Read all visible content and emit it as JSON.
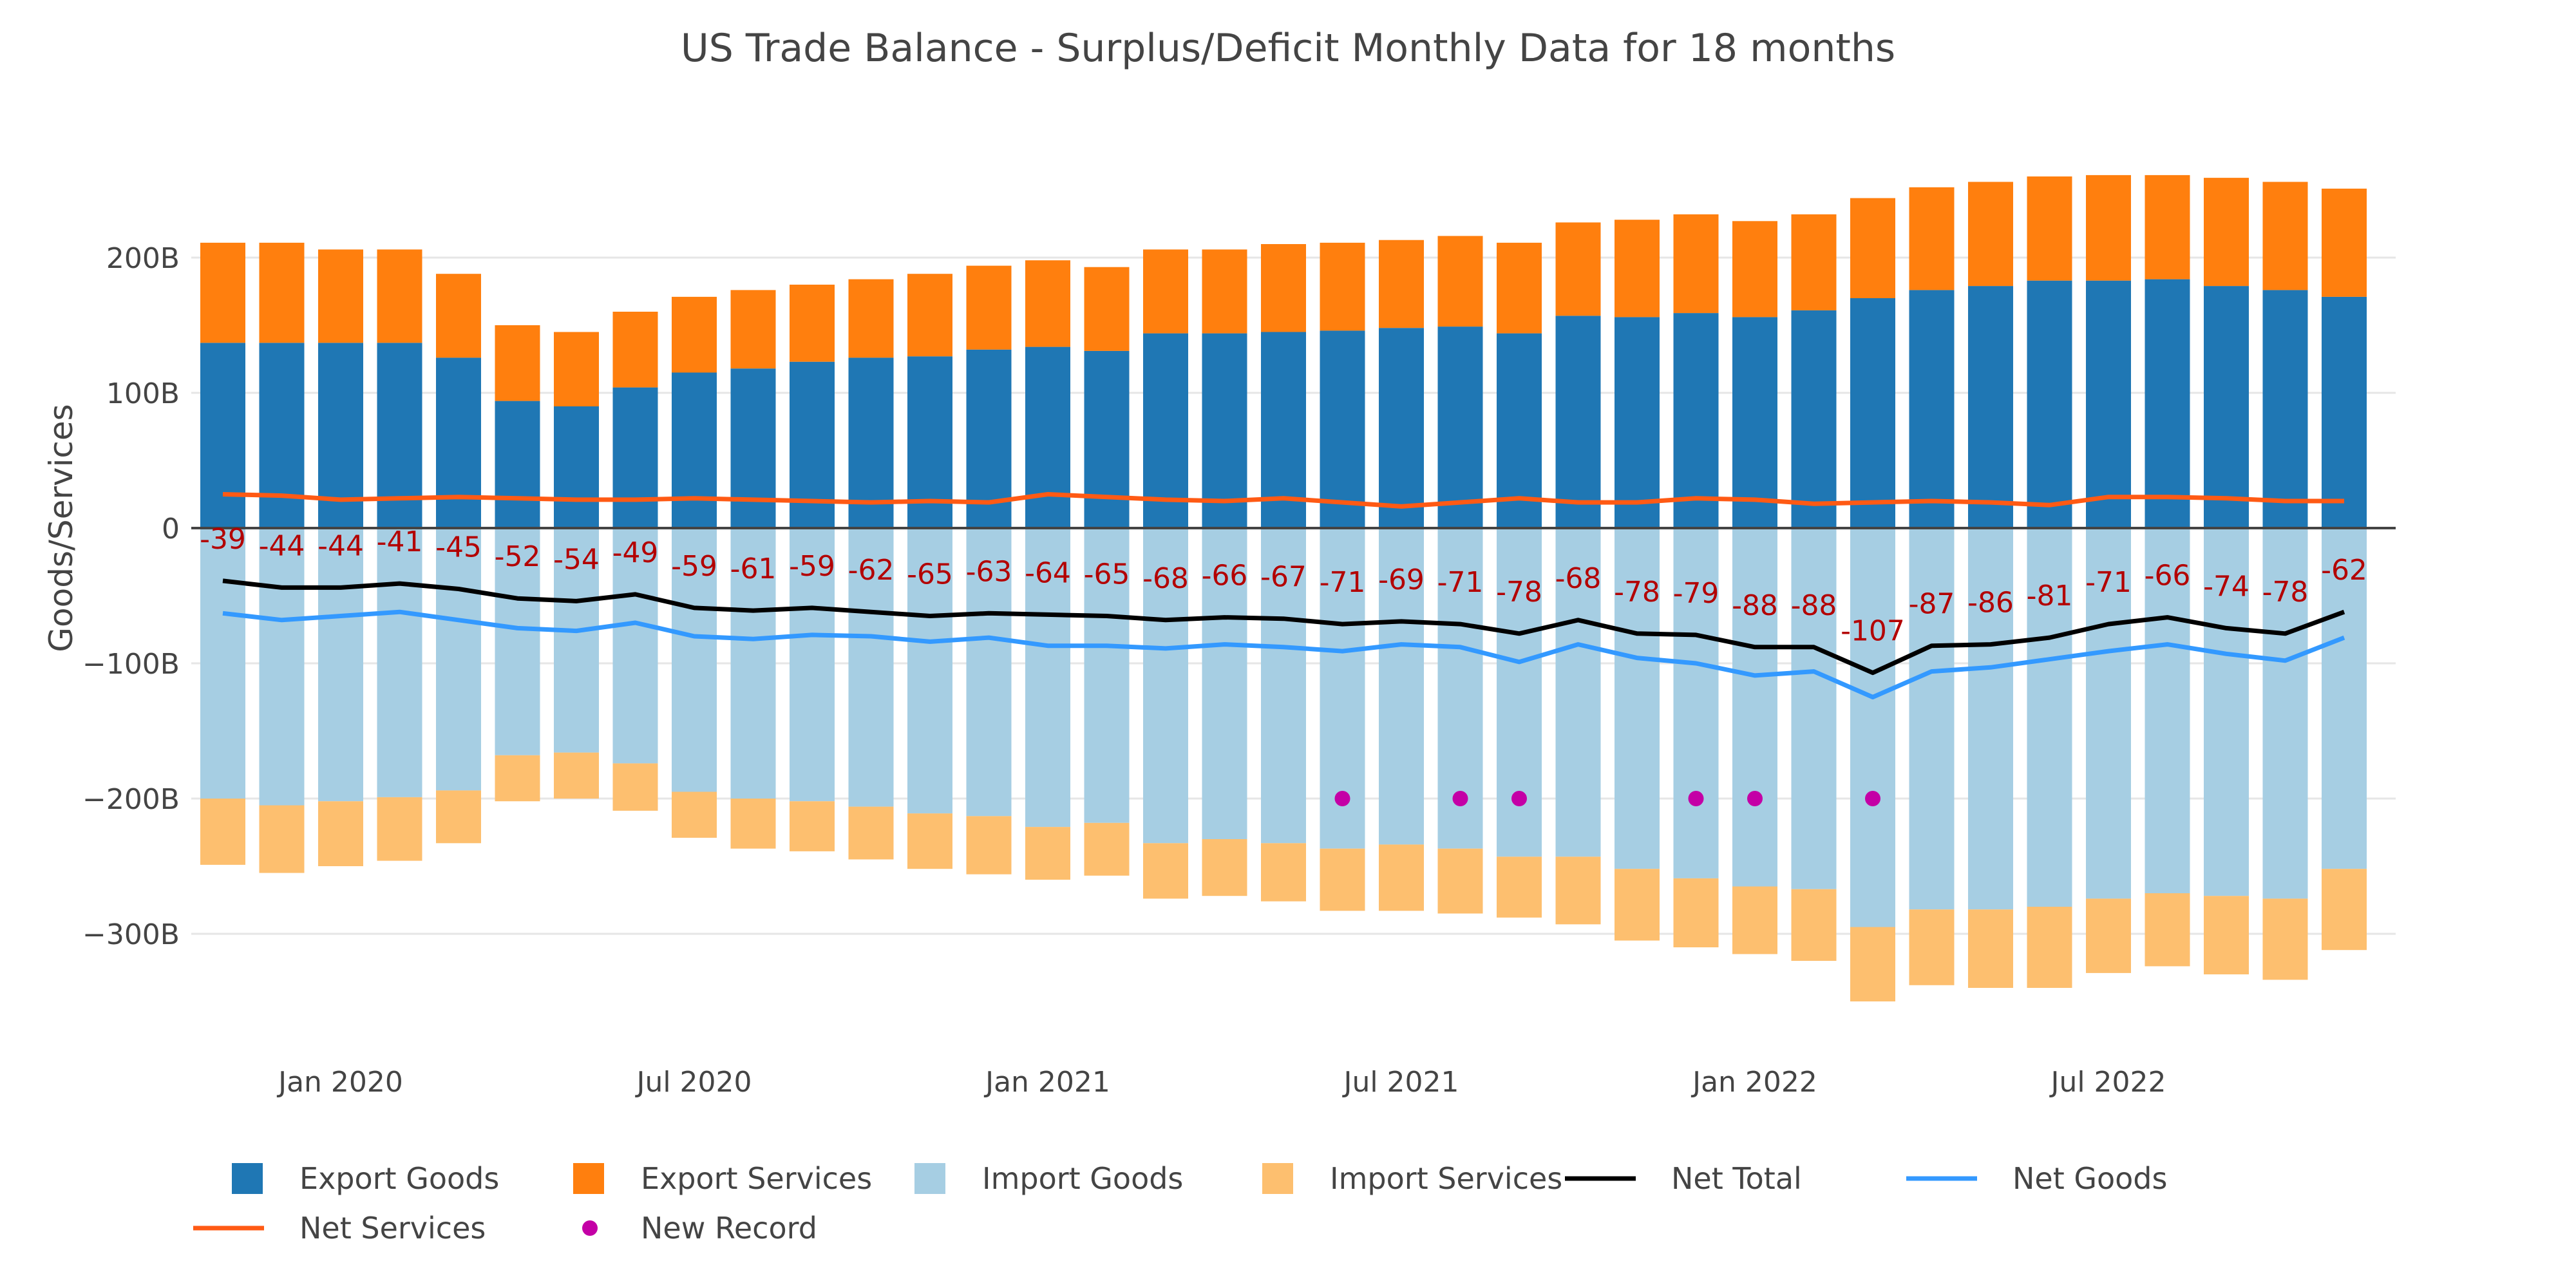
{
  "chart_data": {
    "type": "bar",
    "title": "US Trade Balance - Surplus/Deficit Monthly Data for 18 months",
    "xlabel": "",
    "ylabel": "Goods/Services",
    "ylim": [
      -390,
      300
    ],
    "yticks": [
      -300,
      -200,
      -100,
      0,
      100,
      200
    ],
    "ytick_labels": [
      "−300B",
      "−200B",
      "−100B",
      "0",
      "100B",
      "200B"
    ],
    "x": [
      "2019-11",
      "2019-12",
      "2020-01",
      "2020-02",
      "2020-03",
      "2020-04",
      "2020-05",
      "2020-06",
      "2020-07",
      "2020-08",
      "2020-09",
      "2020-10",
      "2020-11",
      "2020-12",
      "2021-01",
      "2021-02",
      "2021-03",
      "2021-04",
      "2021-05",
      "2021-06",
      "2021-07",
      "2021-08",
      "2021-09",
      "2021-10",
      "2021-11",
      "2021-12",
      "2022-01",
      "2022-02",
      "2022-03",
      "2022-04",
      "2022-05",
      "2022-06",
      "2022-07",
      "2022-08",
      "2022-09",
      "2022-10",
      "2022-11"
    ],
    "xticks": [
      {
        "index": 2,
        "label": "Jan 2020"
      },
      {
        "index": 8,
        "label": "Jul 2020"
      },
      {
        "index": 14,
        "label": "Jan 2021"
      },
      {
        "index": 20,
        "label": "Jul 2021"
      },
      {
        "index": 26,
        "label": "Jan 2022"
      },
      {
        "index": 32,
        "label": "Jul 2022"
      }
    ],
    "grid": true,
    "barmode": "relative",
    "legend_position": "bottom",
    "series": [
      {
        "name": "Export Goods",
        "kind": "bar",
        "color": "#1f77b4",
        "values": [
          137,
          137,
          137,
          137,
          126,
          94,
          90,
          104,
          115,
          118,
          123,
          126,
          127,
          132,
          134,
          131,
          144,
          144,
          145,
          146,
          148,
          149,
          144,
          157,
          156,
          159,
          156,
          161,
          170,
          176,
          179,
          183,
          183,
          184,
          179,
          176,
          171
        ]
      },
      {
        "name": "Export Services",
        "kind": "bar",
        "color": "#ff7f0e",
        "values": [
          74,
          74,
          69,
          69,
          62,
          56,
          55,
          56,
          56,
          58,
          57,
          58,
          61,
          62,
          64,
          62,
          62,
          62,
          65,
          65,
          65,
          67,
          67,
          69,
          72,
          73,
          71,
          71,
          74,
          76,
          77,
          77,
          78,
          77,
          80,
          80,
          80
        ]
      },
      {
        "name": "Import Goods",
        "kind": "bar",
        "color": "#a6cee3",
        "values": [
          -200,
          -205,
          -202,
          -199,
          -194,
          -168,
          -166,
          -174,
          -195,
          -200,
          -202,
          -206,
          -211,
          -213,
          -221,
          -218,
          -233,
          -230,
          -233,
          -237,
          -234,
          -237,
          -243,
          -243,
          -252,
          -259,
          -265,
          -267,
          -295,
          -282,
          -282,
          -280,
          -274,
          -270,
          -272,
          -274,
          -252
        ]
      },
      {
        "name": "Import Services",
        "kind": "bar",
        "color": "#fdbf6f",
        "values": [
          -49,
          -50,
          -48,
          -47,
          -39,
          -34,
          -34,
          -35,
          -34,
          -37,
          -37,
          -39,
          -41,
          -43,
          -39,
          -39,
          -41,
          -42,
          -43,
          -46,
          -49,
          -48,
          -45,
          -50,
          -53,
          -51,
          -50,
          -53,
          -55,
          -56,
          -58,
          -60,
          -55,
          -54,
          -58,
          -60,
          -60
        ]
      },
      {
        "name": "Net Total",
        "kind": "line",
        "color": "#000000",
        "values": [
          -39,
          -44,
          -44,
          -41,
          -45,
          -52,
          -54,
          -49,
          -59,
          -61,
          -59,
          -62,
          -65,
          -63,
          -64,
          -65,
          -68,
          -66,
          -67,
          -71,
          -69,
          -71,
          -78,
          -68,
          -78,
          -79,
          -88,
          -88,
          -107,
          -87,
          -86,
          -81,
          -71,
          -66,
          -74,
          -78,
          -62
        ]
      },
      {
        "name": "Net Goods",
        "kind": "line",
        "color": "#3399ff",
        "values": [
          -63,
          -68,
          -65,
          -62,
          -68,
          -74,
          -76,
          -70,
          -80,
          -82,
          -79,
          -80,
          -84,
          -81,
          -87,
          -87,
          -89,
          -86,
          -88,
          -91,
          -86,
          -88,
          -99,
          -86,
          -96,
          -100,
          -109,
          -106,
          -125,
          -106,
          -103,
          -97,
          -91,
          -86,
          -93,
          -98,
          -81
        ]
      },
      {
        "name": "Net Services",
        "kind": "line",
        "color": "#ff5a14",
        "values": [
          25,
          24,
          21,
          22,
          23,
          22,
          21,
          21,
          22,
          21,
          20,
          19,
          20,
          19,
          25,
          23,
          21,
          20,
          22,
          19,
          16,
          19,
          22,
          19,
          19,
          22,
          21,
          18,
          19,
          20,
          19,
          17,
          23,
          23,
          22,
          20,
          20
        ]
      },
      {
        "name": "New Record",
        "kind": "marker",
        "color": "#c400a6",
        "points": [
          {
            "index": 19,
            "y": -200
          },
          {
            "index": 21,
            "y": -200
          },
          {
            "index": 22,
            "y": -200
          },
          {
            "index": 25,
            "y": -200
          },
          {
            "index": 26,
            "y": -200
          },
          {
            "index": 28,
            "y": -200
          }
        ]
      }
    ],
    "annotations": {
      "color": "#b30000",
      "labels": [
        "-39",
        "-44",
        "-44",
        "-41",
        "-45",
        "-52",
        "-54",
        "-49",
        "-59",
        "-61",
        "-59",
        "-62",
        "-65",
        "-63",
        "-64",
        "-65",
        "-68",
        "-66",
        "-67",
        "-71",
        "-69",
        "-71",
        "-78",
        "-68",
        "-78",
        "-79",
        "-88",
        "-88",
        "-107",
        "-87",
        "-86",
        "-81",
        "-71",
        "-66",
        "-74",
        "-78",
        "-62"
      ]
    }
  }
}
